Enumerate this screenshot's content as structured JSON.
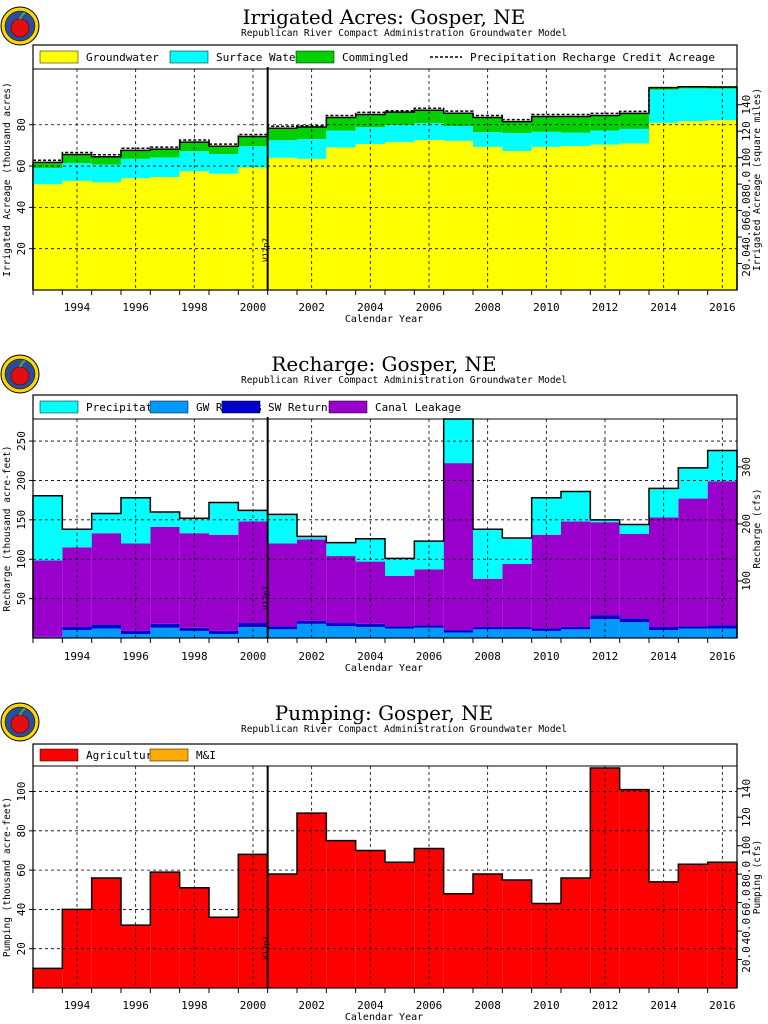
{
  "chart_data": [
    {
      "type": "area",
      "title": "Irrigated  Acres:  Gosper,  NE",
      "subtitle": "Republican  River  Compact  Administration  Groundwater  Model",
      "xlabel": "Calendar  Year",
      "ylabel": "Irrigated  Acreage  (thousand  acres)",
      "ylabel_right": "Irrigated  Acreage  (square  miles)",
      "x_years": [
        1993,
        1994,
        1995,
        1996,
        1997,
        1998,
        1999,
        2000,
        2001,
        2002,
        2003,
        2004,
        2005,
        2006,
        2007,
        2008,
        2009,
        2010,
        2011,
        2012,
        2013,
        2014,
        2015,
        2016
      ],
      "x_tick_labels": [
        "1994",
        "1996",
        "1998",
        "2000",
        "2002",
        "2004",
        "2006",
        "2008",
        "2010",
        "2012",
        "2014",
        "2016"
      ],
      "ylim": [
        0,
        107
      ],
      "y_tick_labels": [
        "20",
        "40",
        "60",
        "80"
      ],
      "y_ticks": [
        20,
        40,
        60,
        80
      ],
      "right_ylim": [
        0,
        167
      ],
      "right_tick_labels": [
        "20.0",
        "40.0",
        "60.0",
        "80.0",
        "100",
        "120",
        "140"
      ],
      "right_ticks": [
        20,
        40,
        60,
        80,
        100,
        120,
        140
      ],
      "grid": true,
      "legend_position": "top",
      "vline_label": "V12p7",
      "vline_x": 2000.5,
      "series": [
        {
          "name": "Groundwater",
          "color": "#ffff00",
          "legend_kind": "box",
          "values": [
            51.2,
            52.8,
            52.1,
            54.1,
            54.7,
            57.5,
            56.3,
            59.3,
            64.0,
            63.5,
            69.0,
            70.7,
            71.6,
            72.6,
            72.2,
            69.3,
            67.3,
            69.3,
            69.7,
            70.4,
            71.0,
            81.0,
            81.7,
            82.2
          ]
        },
        {
          "name": "Surface Water",
          "color": "#00ffff",
          "legend_kind": "box",
          "values": [
            7.9,
            8.7,
            8.6,
            9.4,
            9.5,
            9.7,
            9.5,
            10.3,
            8.5,
            9.6,
            8.2,
            8.1,
            8.3,
            8.2,
            7.2,
            7.1,
            8.7,
            7.3,
            6.5,
            6.8,
            7.0,
            16.0,
            15.9,
            15.3
          ]
        },
        {
          "name": "Commingled",
          "color": "#00d000",
          "legend_kind": "box",
          "values": [
            2.7,
            4.1,
            3.8,
            4.1,
            4.0,
            4.4,
            3.8,
            4.7,
            5.8,
            5.8,
            6.3,
            6.2,
            6.2,
            6.2,
            6.2,
            7.1,
            5.5,
            7.4,
            7.8,
            7.3,
            7.5,
            1.0,
            0.8,
            0.8
          ]
        },
        {
          "name": "Precipitation  Recharge  Credit  Acreage",
          "color": "#000000",
          "legend_kind": "dashed",
          "values": [
            62.8,
            66.6,
            65.5,
            68.6,
            69.2,
            72.6,
            70.6,
            75.3,
            79.3,
            79.6,
            84.5,
            86.0,
            86.8,
            88.0,
            86.6,
            84.5,
            82.5,
            85.0,
            85.0,
            85.5,
            86.5,
            98.0,
            98.4,
            98.3
          ]
        }
      ]
    },
    {
      "type": "area",
      "title": "Recharge:  Gosper,  NE",
      "subtitle": "Republican  River  Compact  Administration  Groundwater  Model",
      "xlabel": "Calendar  Year",
      "ylabel": "Recharge  (thousand  acre-feet)",
      "ylabel_right": "Recharge  (cfs)",
      "x_years": [
        1993,
        1994,
        1995,
        1996,
        1997,
        1998,
        1999,
        2000,
        2001,
        2002,
        2003,
        2004,
        2005,
        2006,
        2007,
        2008,
        2009,
        2010,
        2011,
        2012,
        2013,
        2014,
        2015,
        2016
      ],
      "x_tick_labels": [
        "1994",
        "1996",
        "1998",
        "2000",
        "2002",
        "2004",
        "2006",
        "2008",
        "2010",
        "2012",
        "2014",
        "2016"
      ],
      "ylim": [
        0,
        278
      ],
      "y_tick_labels": [
        "50",
        "100",
        "150",
        "200",
        "250"
      ],
      "y_ticks": [
        50,
        100,
        150,
        200,
        250
      ],
      "right_ylim": [
        0,
        384
      ],
      "right_tick_labels": [
        "100",
        "200",
        "300"
      ],
      "right_ticks": [
        100,
        200,
        300
      ],
      "grid": true,
      "legend_position": "top",
      "vline_label": "V12p7",
      "vline_x": 2000.5,
      "series": [
        {
          "name": "GW  Returns",
          "color": "#0099ff",
          "values": [
            1,
            10,
            12,
            5,
            13,
            9,
            5,
            14,
            11,
            18,
            15,
            14,
            12,
            13,
            7,
            11,
            11,
            9,
            11,
            24,
            20,
            10,
            12,
            12
          ]
        },
        {
          "name": "SW  Returns",
          "color": "#0000cc",
          "values": [
            0.5,
            4,
            5,
            4,
            5,
            4,
            4,
            5,
            4,
            4,
            4,
            4,
            3,
            3,
            3,
            3,
            3,
            3,
            3,
            5,
            5,
            4,
            3,
            4
          ]
        },
        {
          "name": "Canal  Leakage",
          "color": "#9900cc",
          "values": [
            97,
            101,
            116,
            111,
            123,
            120,
            122,
            129,
            105,
            103,
            85,
            79,
            64,
            71,
            212,
            61,
            80,
            119,
            134,
            118,
            107,
            139,
            162,
            183
          ]
        },
        {
          "name": "Precipitation",
          "color": "#00ffff",
          "values": [
            82,
            23,
            25,
            58,
            19,
            19,
            41,
            14,
            37,
            4,
            17,
            29,
            22,
            36,
            56,
            63,
            33,
            47,
            38,
            3,
            12,
            37,
            39,
            39
          ]
        }
      ],
      "legend_order": [
        "Precipitation",
        "GW  Returns",
        "SW  Returns",
        "Canal  Leakage"
      ]
    },
    {
      "type": "bar",
      "title": "Pumping:  Gosper,  NE",
      "subtitle": "Republican  River  Compact  Administration  Groundwater  Model",
      "xlabel": "Calendar  Year",
      "ylabel": "Pumping  (thousand  acre-feet)",
      "ylabel_right": "Pumping  (cfs)",
      "x_years": [
        1993,
        1994,
        1995,
        1996,
        1997,
        1998,
        1999,
        2000,
        2001,
        2002,
        2003,
        2004,
        2005,
        2006,
        2007,
        2008,
        2009,
        2010,
        2011,
        2012,
        2013,
        2014,
        2015,
        2016
      ],
      "x_tick_labels": [
        "1994",
        "1996",
        "1998",
        "2000",
        "2002",
        "2004",
        "2006",
        "2008",
        "2010",
        "2012",
        "2014",
        "2016"
      ],
      "ylim": [
        0,
        113
      ],
      "y_tick_labels": [
        "20",
        "40",
        "60",
        "80",
        "100"
      ],
      "y_ticks": [
        20,
        40,
        60,
        80,
        100
      ],
      "right_ylim": [
        0,
        156
      ],
      "right_tick_labels": [
        "20.0",
        "40.0",
        "60.0",
        "80.0",
        "100",
        "120",
        "140"
      ],
      "right_ticks": [
        20,
        40,
        60,
        80,
        100,
        120,
        140
      ],
      "grid": true,
      "legend_position": "top",
      "vline_label": "V12p7",
      "vline_x": 2000.5,
      "series": [
        {
          "name": "Agricultural",
          "color": "#ff0000",
          "values": [
            10,
            40,
            56,
            32,
            59,
            51,
            36,
            68,
            58,
            89,
            75,
            70,
            64,
            71,
            48,
            58,
            55,
            43,
            56,
            112,
            101,
            54,
            63,
            64
          ]
        },
        {
          "name": "M&I",
          "color": "#ffaa00",
          "values": [
            0,
            0,
            0,
            0,
            0,
            0,
            0,
            0,
            0,
            0,
            0,
            0,
            0,
            0,
            0,
            0,
            0,
            0,
            0,
            0,
            0,
            0,
            0,
            0
          ]
        }
      ]
    }
  ]
}
